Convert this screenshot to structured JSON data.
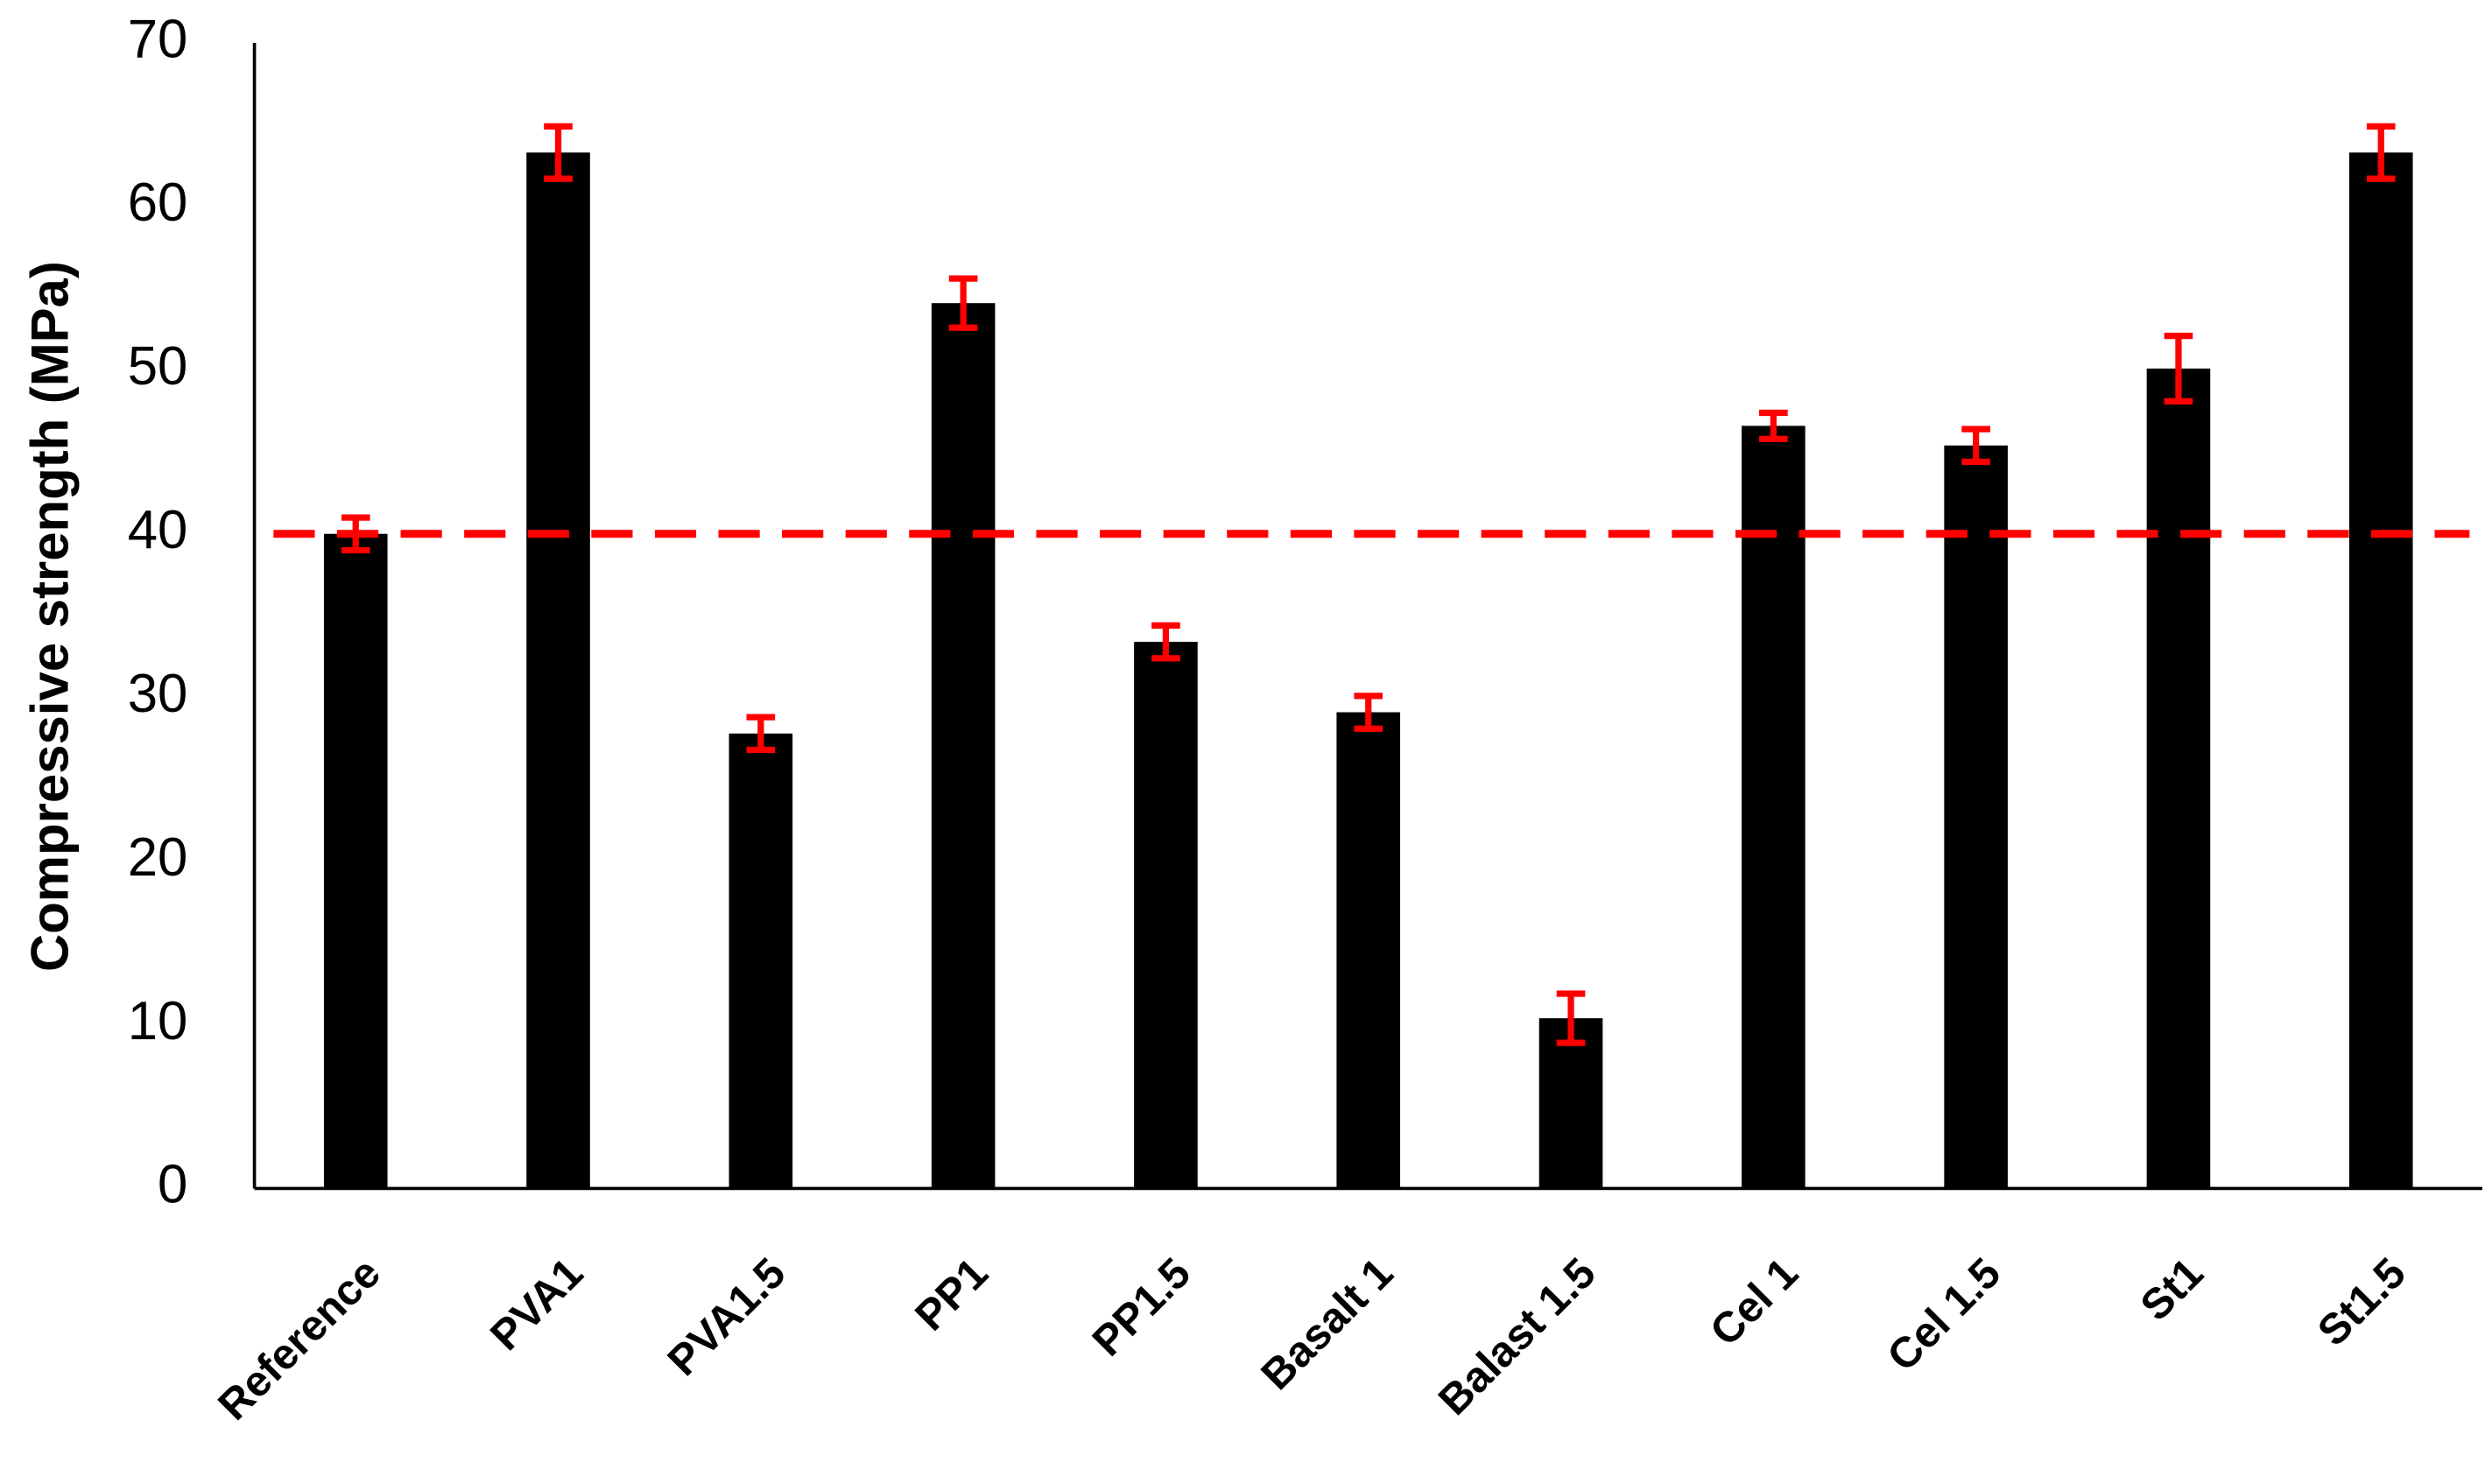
{
  "chart_data": {
    "type": "bar",
    "y_label": "Compressive strength (MPa)",
    "categories": [
      "Reference",
      "PVA1",
      "PVA1.5",
      "PP1",
      "PP1.5",
      "Basalt 1",
      "Balast 1.5",
      "Cel 1",
      "Cel 1.5",
      "St1",
      "St1.5"
    ],
    "values": [
      40,
      63.3,
      27.8,
      54.1,
      33.4,
      29.1,
      10.4,
      46.6,
      45.4,
      50.1,
      63.3
    ],
    "errors": [
      1,
      1.6,
      1,
      1.5,
      1,
      1,
      1.5,
      0.8,
      1,
      2,
      1.6
    ],
    "color": "#000000",
    "error_color": "#ff0000",
    "reference_line": 40,
    "reference_color": "#ff0000",
    "ylim": [
      0,
      70
    ],
    "yticks": [
      0,
      10,
      20,
      30,
      40,
      50,
      60,
      70
    ],
    "grid": false
  }
}
